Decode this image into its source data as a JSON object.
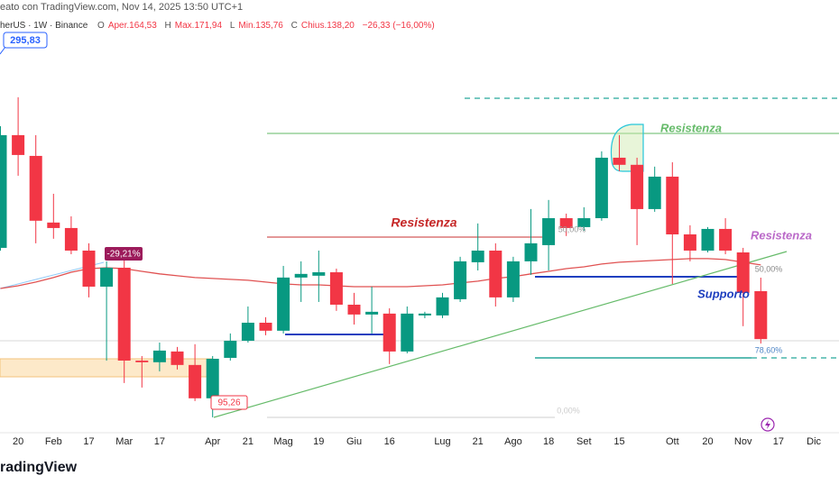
{
  "chart_data": {
    "type": "candlestick",
    "title": "eato con TradingView.com, Nov 14, 2025 13:50 UTC+1",
    "subtitle": "herUS · 1W · Binance",
    "legend_items": [
      {
        "key": "O",
        "text": "Aper.164,53"
      },
      {
        "key": "H",
        "text": "Max.171,94"
      },
      {
        "key": "L",
        "text": "Min.135,76"
      },
      {
        "key": "C",
        "text": "Chius.138,20"
      }
    ],
    "change_text": "−26,33 (−16,00%)",
    "up_color": "#089981",
    "down_color": "#f23645",
    "ylim": [
      86.8,
      324.4
    ],
    "open": [
      188.3,
      250.2,
      238.8,
      202.2,
      199.2,
      186.8,
      167.0,
      177.4,
      126.4,
      125.5,
      131.4,
      124.0,
      105.7,
      127.9,
      137.3,
      147.2,
      142.8,
      172.0,
      173.0,
      174.9,
      157.1,
      151.7,
      152.2,
      131.4,
      151.2,
      151.2,
      160.1,
      180.4,
      186.8,
      161.1,
      180.9,
      189.8,
      204.6,
      199.7,
      204.6,
      237.8,
      233.9,
      209.6,
      227.4,
      195.7,
      186.8,
      198.7,
      185.8,
      164.53
    ],
    "high": [
      255.1,
      271.0,
      250.2,
      218.0,
      205.6,
      190.8,
      180.9,
      182.4,
      128.9,
      136.3,
      133.9,
      135.4,
      128.9,
      141.3,
      156.1,
      150.2,
      178.4,
      180.9,
      186.8,
      176.9,
      163.6,
      167.0,
      155.1,
      156.1,
      153.2,
      163.6,
      183.4,
      201.7,
      190.8,
      183.4,
      209.6,
      214.6,
      207.1,
      210.6,
      241.3,
      250.2,
      237.8,
      232.9,
      235.3,
      200.7,
      199.7,
      204.6,
      188.3,
      171.94
    ],
    "low": [
      186.8,
      227.9,
      190.8,
      193.3,
      184.8,
      161.1,
      126.4,
      114.1,
      111.6,
      120.5,
      121.5,
      104.2,
      95.26,
      126.4,
      136.3,
      140.3,
      141.3,
      158.6,
      158.6,
      153.7,
      146.2,
      141.3,
      124.5,
      130.4,
      149.7,
      149.7,
      158.6,
      175.9,
      156.1,
      158.6,
      173.5,
      175.9,
      194.8,
      197.7,
      203.2,
      230.4,
      189.8,
      208.1,
      168.5,
      180.9,
      185.8,
      184.8,
      145.3,
      135.76
    ],
    "close": [
      250.2,
      239.3,
      203.2,
      199.2,
      186.8,
      167.0,
      177.4,
      126.4,
      125.5,
      131.9,
      124.0,
      105.7,
      127.4,
      137.3,
      147.2,
      142.8,
      172.0,
      174.0,
      174.9,
      157.1,
      151.7,
      153.2,
      131.4,
      152.2,
      152.2,
      161.1,
      180.9,
      186.8,
      161.1,
      180.9,
      190.8,
      204.6,
      199.2,
      204.6,
      237.8,
      233.9,
      209.6,
      227.4,
      195.7,
      186.8,
      198.7,
      186.8,
      163.6,
      138.2
    ],
    "moving_average": {
      "color": "#e05252",
      "values": [
        166.0,
        167.5,
        169.5,
        172.0,
        174.9,
        176.9,
        177.4,
        176.9,
        175.4,
        174.0,
        173.0,
        172.0,
        171.5,
        171.0,
        170.5,
        169.5,
        168.5,
        168.0,
        168.0,
        167.5,
        167.0,
        167.0,
        167.0,
        167.0,
        167.5,
        168.0,
        169.0,
        170.0,
        171.5,
        172.5,
        174.0,
        175.4,
        176.9,
        177.9,
        179.4,
        180.4,
        180.9,
        181.4,
        181.9,
        182.4,
        182.4,
        181.9,
        180.4,
        178.9
      ]
    },
    "xticks": [
      {
        "value": 1,
        "label": "20"
      },
      {
        "value": 3,
        "label": "Feb"
      },
      {
        "value": 5,
        "label": "17"
      },
      {
        "value": 7,
        "label": "Mar"
      },
      {
        "value": 9,
        "label": "17"
      },
      {
        "value": 12,
        "label": "Apr"
      },
      {
        "value": 14,
        "label": "21"
      },
      {
        "value": 16,
        "label": "Mag"
      },
      {
        "value": 18,
        "label": "19"
      },
      {
        "value": 20,
        "label": "Giu"
      },
      {
        "value": 22,
        "label": "16"
      },
      {
        "value": 25,
        "label": "Lug"
      },
      {
        "value": 27,
        "label": "21"
      },
      {
        "value": 29,
        "label": "Ago"
      },
      {
        "value": 31,
        "label": "18"
      },
      {
        "value": 33,
        "label": "Set"
      },
      {
        "value": 35,
        "label": "15"
      },
      {
        "value": 38,
        "label": "Ott"
      },
      {
        "value": 40,
        "label": "20"
      },
      {
        "value": 42,
        "label": "Nov"
      },
      {
        "value": 44,
        "label": "17"
      },
      {
        "value": 46,
        "label": "Dic"
      }
    ],
    "annotations": [
      {
        "text": "295,83"
      },
      {
        "text": "-29,21%"
      },
      {
        "text": "95,26"
      },
      {
        "text": "Resistenza"
      },
      {
        "text": "Resistenza"
      },
      {
        "text": "Resistenza"
      },
      {
        "text": "Supporto"
      },
      {
        "text": "50,00%"
      },
      {
        "text": "50,00%"
      },
      {
        "text": "78,60%"
      },
      {
        "text": "0,00%"
      }
    ],
    "brand": "radingView"
  }
}
